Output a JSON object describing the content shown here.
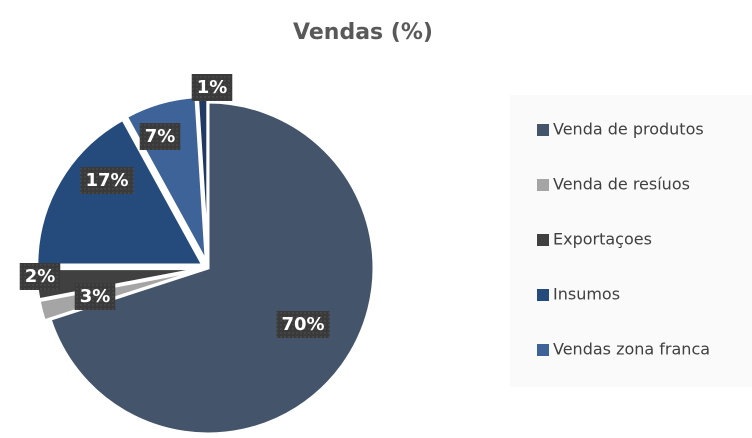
{
  "chart_data": {
    "type": "pie",
    "title": "Vendas (%)",
    "categories": [
      "Venda de produtos",
      "Venda de resíuos",
      "Exportaçoes",
      "Insumos",
      "Vendas zona franca",
      null
    ],
    "values": [
      70,
      2,
      3,
      17,
      7,
      1
    ],
    "value_labels": [
      "70%",
      "2%",
      "3%",
      "17%",
      "7%",
      "1%"
    ],
    "colors": [
      "#44546a",
      "#a5a5a5",
      "#404040",
      "#254a7c",
      "#3d6399",
      "#1f3864"
    ],
    "legend": "right"
  }
}
